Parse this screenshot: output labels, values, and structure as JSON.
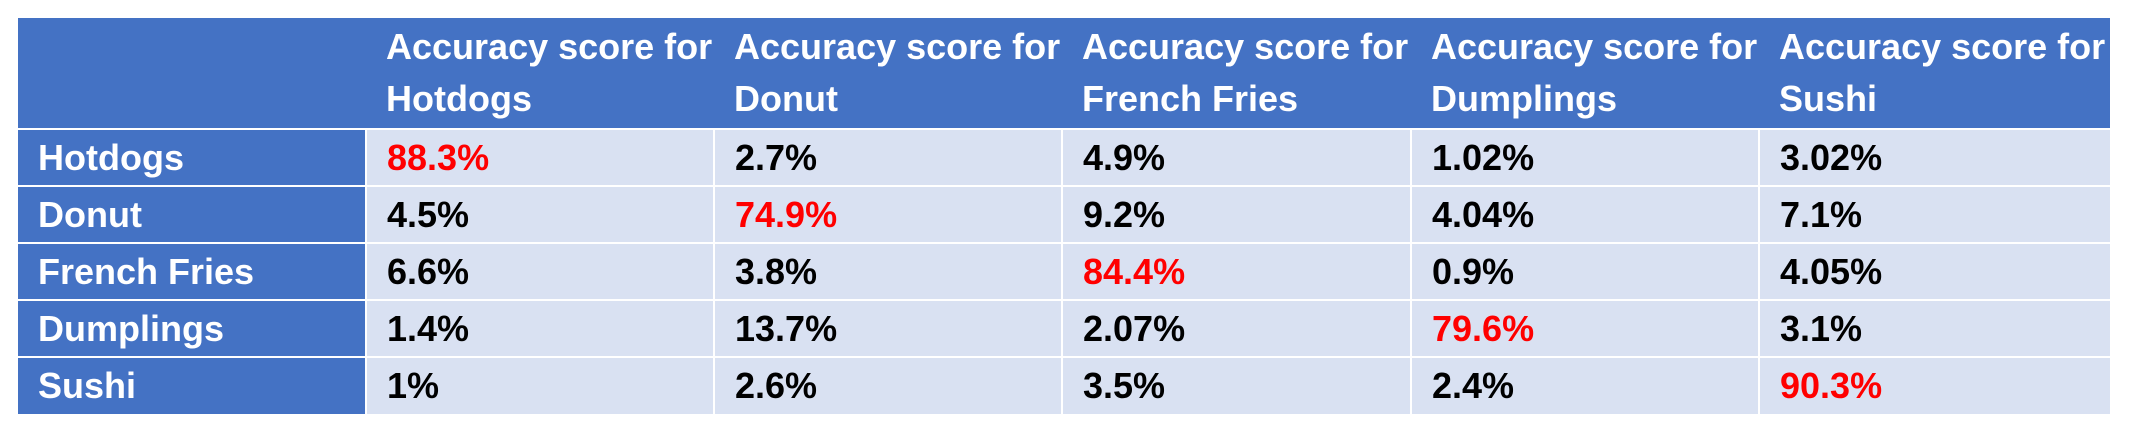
{
  "table": {
    "corner_label": "",
    "columns": [
      "Accuracy score for Hotdogs",
      "Accuracy score for Donut",
      "Accuracy score for French Fries",
      "Accuracy score for Dumplings",
      "Accuracy score for Sushi"
    ],
    "rows": [
      {
        "label": "Hotdogs",
        "cells": [
          "88.3%",
          "2.7%",
          "4.9%",
          "1.02%",
          "3.02%"
        ]
      },
      {
        "label": "Donut",
        "cells": [
          "4.5%",
          "74.9%",
          "9.2%",
          "4.04%",
          "7.1%"
        ]
      },
      {
        "label": "French Fries",
        "cells": [
          "6.6%",
          "3.8%",
          "84.4%",
          "0.9%",
          "4.05%"
        ]
      },
      {
        "label": "Dumplings",
        "cells": [
          "1.4%",
          "13.7%",
          "2.07%",
          "79.6%",
          "3.1%"
        ]
      },
      {
        "label": "Sushi",
        "cells": [
          "1%",
          "2.6%",
          "3.5%",
          "2.4%",
          "90.3%"
        ]
      }
    ]
  },
  "colors": {
    "header_background": "#4472c4",
    "header_text": "#ffffff",
    "cell_background": "#d9e1f2",
    "cell_text": "#000000",
    "highlight_text": "#ff0000"
  }
}
